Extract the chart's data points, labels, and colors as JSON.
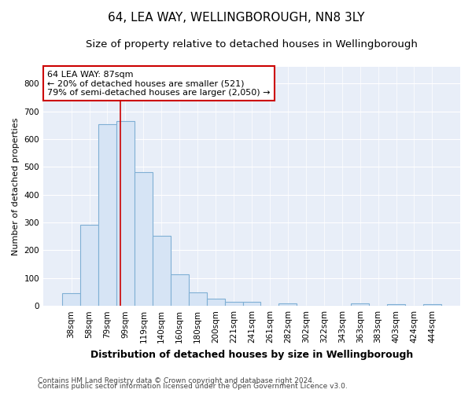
{
  "title1": "64, LEA WAY, WELLINGBOROUGH, NN8 3LY",
  "title2": "Size of property relative to detached houses in Wellingborough",
  "xlabel": "Distribution of detached houses by size in Wellingborough",
  "ylabel": "Number of detached properties",
  "categories": [
    "38sqm",
    "58sqm",
    "79sqm",
    "99sqm",
    "119sqm",
    "140sqm",
    "160sqm",
    "180sqm",
    "200sqm",
    "221sqm",
    "241sqm",
    "261sqm",
    "282sqm",
    "302sqm",
    "322sqm",
    "343sqm",
    "363sqm",
    "383sqm",
    "403sqm",
    "424sqm",
    "444sqm"
  ],
  "values": [
    45,
    293,
    655,
    665,
    480,
    253,
    113,
    48,
    27,
    14,
    14,
    0,
    8,
    0,
    0,
    0,
    8,
    0,
    5,
    0,
    5
  ],
  "bar_color": "#d6e4f5",
  "bar_edge_color": "#7fafd4",
  "vline_color": "#cc0000",
  "vline_x_index": 2.72,
  "annotation_text": "64 LEA WAY: 87sqm\n← 20% of detached houses are smaller (521)\n79% of semi-detached houses are larger (2,050) →",
  "annotation_box_facecolor": "#ffffff",
  "annotation_box_edgecolor": "#cc0000",
  "ylim": [
    0,
    860
  ],
  "yticks": [
    0,
    100,
    200,
    300,
    400,
    500,
    600,
    700,
    800
  ],
  "plot_bg_color": "#e8eef8",
  "grid_color": "#ffffff",
  "title1_fontsize": 11,
  "title2_fontsize": 9.5,
  "xlabel_fontsize": 9,
  "ylabel_fontsize": 8,
  "tick_fontsize": 7.5,
  "ann_fontsize": 8,
  "footer1": "Contains HM Land Registry data © Crown copyright and database right 2024.",
  "footer2": "Contains public sector information licensed under the Open Government Licence v3.0.",
  "footer_fontsize": 6.5
}
